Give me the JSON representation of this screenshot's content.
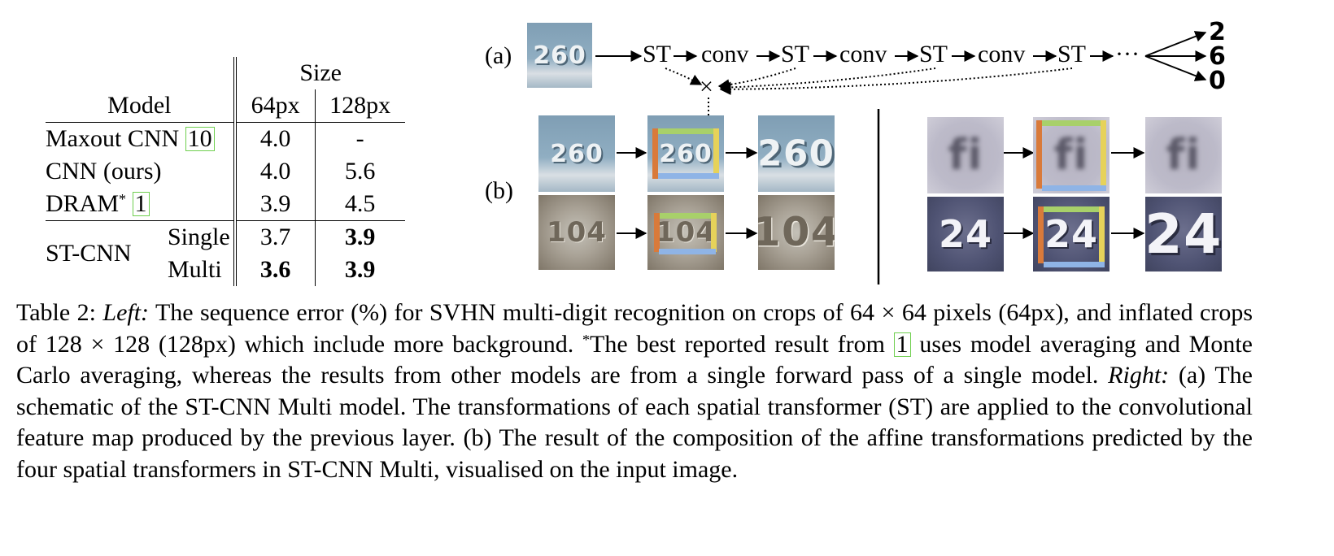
{
  "table": {
    "header_group": "Size",
    "col_model": "Model",
    "col_64": "64px",
    "col_128": "128px",
    "rows": [
      {
        "model": "Maxout CNN ",
        "cite": "10",
        "v64": "4.0",
        "v128": "-"
      },
      {
        "model": "CNN (ours)",
        "v64": "4.0",
        "v128": "5.6"
      },
      {
        "model": "DRAM",
        "star": "*",
        "cite": "1",
        "v64": "3.9",
        "v128": "4.5"
      }
    ],
    "st_model": "ST-CNN",
    "st_rows": [
      {
        "sub": "Single",
        "v64": "3.7",
        "v128": "3.9"
      },
      {
        "sub": "Multi",
        "v64": "3.6",
        "v128": "3.9"
      }
    ]
  },
  "figure": {
    "label_a": "(a)",
    "label_b": "(b)",
    "flow": [
      "ST",
      "conv",
      "ST",
      "conv",
      "ST",
      "conv",
      "ST",
      "···"
    ],
    "cross": "×",
    "outputs": [
      "2",
      "6",
      "0"
    ],
    "thumb_texts": [
      "260",
      "104",
      "fi",
      "24"
    ]
  },
  "caption": {
    "prefix": "Table 2: ",
    "left_label": "Left:",
    "part1": " The sequence error (%) for SVHN multi-digit recognition on crops of 64 × 64 pixels (64px), and inflated crops of 128 × 128 (128px) which include more background. ",
    "star": "*",
    "part2": "The best reported result from ",
    "cite": "1",
    "part3": " uses model averaging and Monte Carlo averaging, whereas the results from other models are from a single forward pass of a single model. ",
    "right_label": "Right:",
    "part4": " (a) The schematic of the ST-CNN Multi model. The transformations of each spatial transformer (ST) are applied to the convolutional feature map produced by the previous layer. (b) The result of the composition of the affine transformations predicted by the four spatial transformers in ST-CNN Multi, visualised on the input image."
  }
}
